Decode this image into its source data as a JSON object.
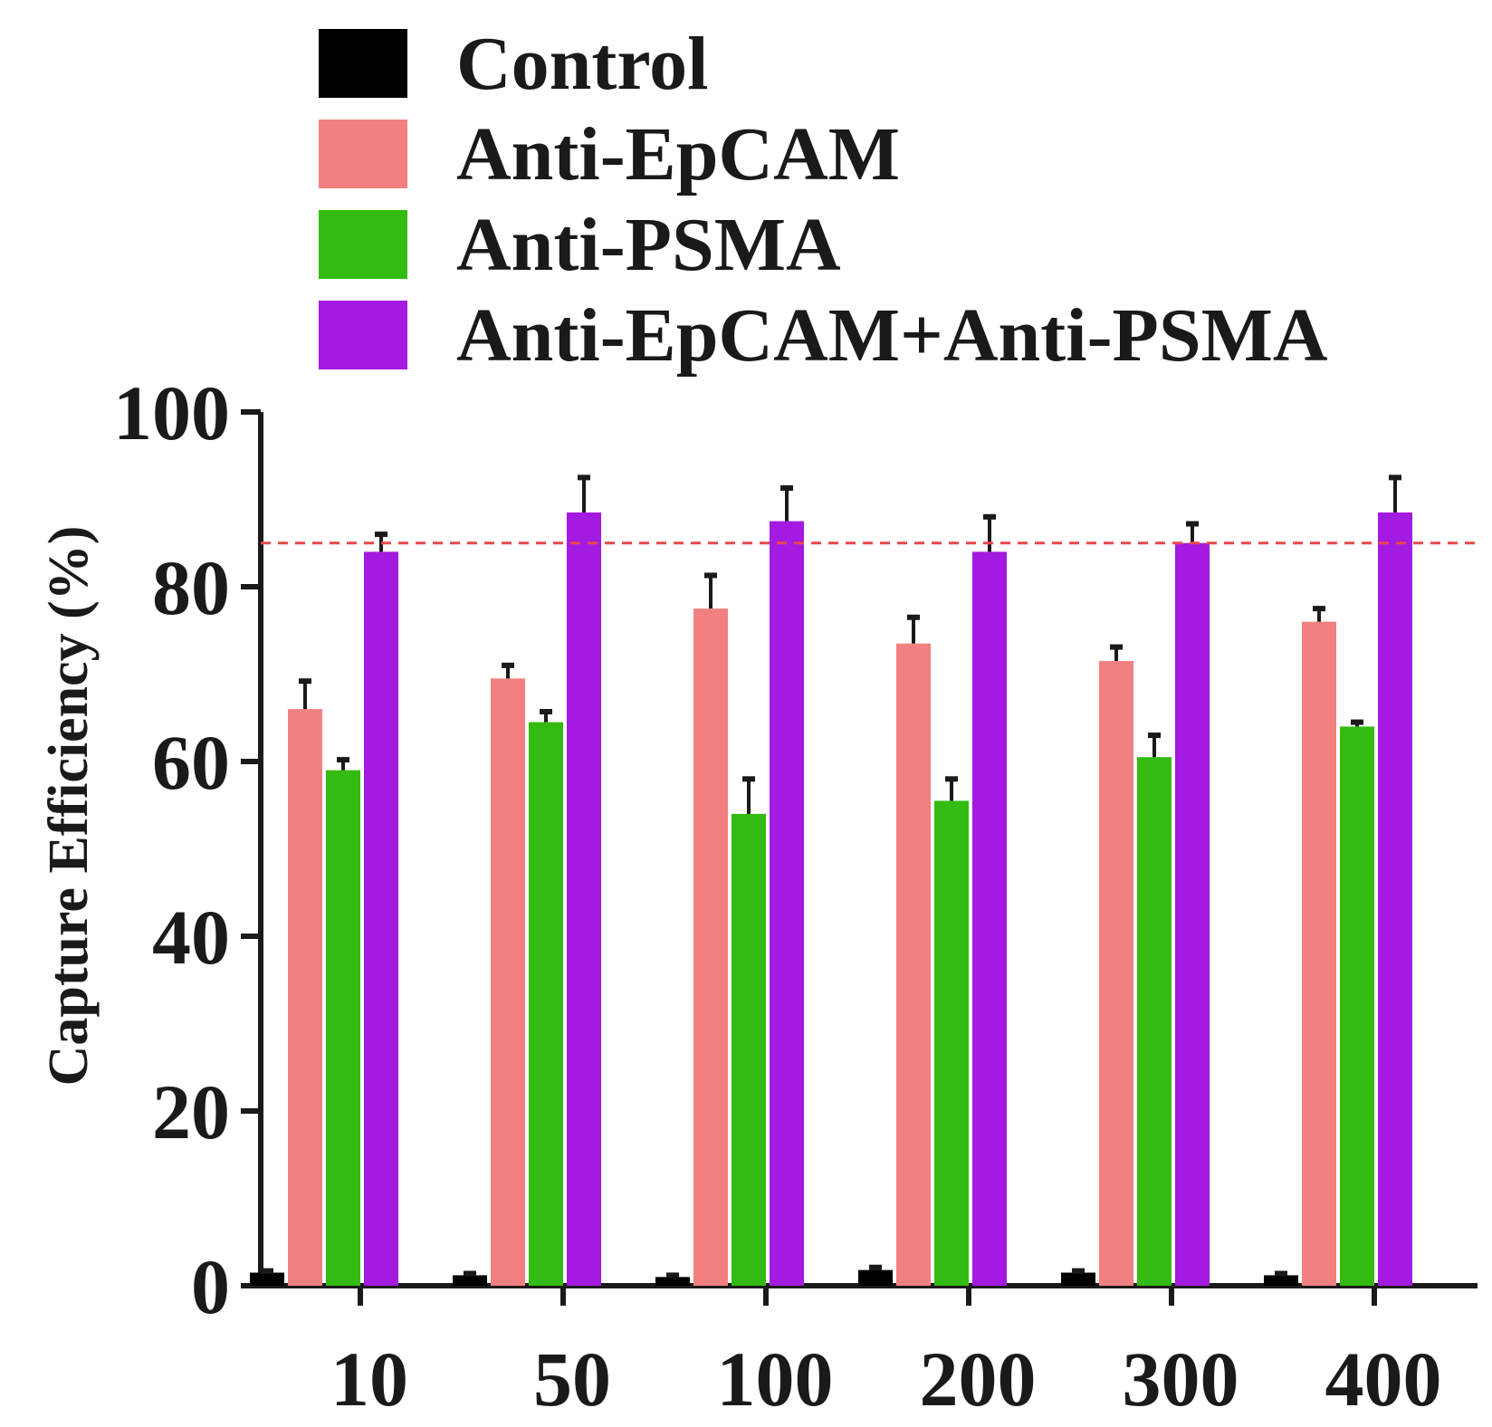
{
  "chart_data": {
    "type": "bar",
    "title": "",
    "xlabel": "",
    "ylabel": "Capture Efficiency (%)",
    "ylim": [
      0,
      100
    ],
    "yticks": [
      0,
      20,
      40,
      60,
      80,
      100
    ],
    "categories": [
      "10",
      "50",
      "100",
      "200",
      "300",
      "400"
    ],
    "series": [
      {
        "name": "Control",
        "color": "#000000",
        "values": [
          1.5,
          1.2,
          1.0,
          1.8,
          1.5,
          1.2
        ],
        "errors": [
          0.2,
          0.2,
          0.2,
          0.3,
          0.2,
          0.2
        ]
      },
      {
        "name": "Anti-EpCAM",
        "color": "#F28080",
        "values": [
          66,
          69.5,
          77.5,
          73.5,
          71.5,
          76
        ],
        "errors": [
          3.2,
          1.5,
          3.8,
          3.0,
          1.6,
          1.5
        ]
      },
      {
        "name": "Anti-PSMA",
        "color": "#33BB11",
        "values": [
          59,
          64.5,
          54,
          55.5,
          60.5,
          64
        ],
        "errors": [
          1.2,
          1.2,
          4.0,
          2.5,
          2.5,
          0.5
        ]
      },
      {
        "name": "Anti-EpCAM+Anti-PSMA",
        "color": "#A31AE0",
        "values": [
          84,
          88.5,
          87.5,
          84,
          85,
          88.5
        ],
        "errors": [
          2.0,
          4.0,
          3.8,
          4.0,
          2.2,
          4.0
        ]
      }
    ],
    "reference_line": {
      "value": 85,
      "color": "#E8484A",
      "style": "dashed"
    },
    "legend_position": "top",
    "grid": false
  }
}
